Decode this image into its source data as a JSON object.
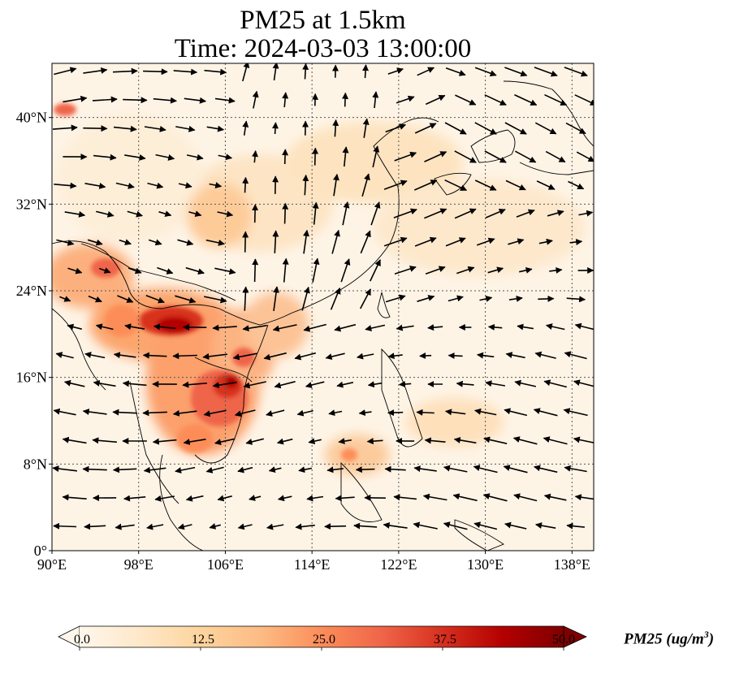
{
  "title": {
    "line1": "PM25 at 1.5km",
    "line2": "Time: 2024-03-03 13:00:00"
  },
  "map": {
    "lon_range": [
      90,
      140
    ],
    "lat_range": [
      0,
      45
    ],
    "x_ticks": [
      "90°E",
      "98°E",
      "106°E",
      "114°E",
      "122°E",
      "130°E",
      "138°E"
    ],
    "y_ticks": [
      "0°",
      "8°N",
      "16°N",
      "24°N",
      "32°N",
      "40°N"
    ],
    "gridlines": true,
    "coastlines": true,
    "wind_vectors": true
  },
  "colorbar": {
    "label": "PM25 (ug/m³)",
    "label_main": "PM25 (ug/m",
    "label_sup": "3",
    "label_close": ")",
    "ticks": [
      "0.0",
      "12.5",
      "25.0",
      "37.5",
      "50.0"
    ],
    "min": 0,
    "max": 50,
    "extend": "both",
    "colormap": "OrRd",
    "colors": [
      "#fff7ec",
      "#fee8c8",
      "#fdd49e",
      "#fdbb84",
      "#fc8d59",
      "#ef6548",
      "#d7301f",
      "#b30000",
      "#7f0000"
    ]
  }
}
